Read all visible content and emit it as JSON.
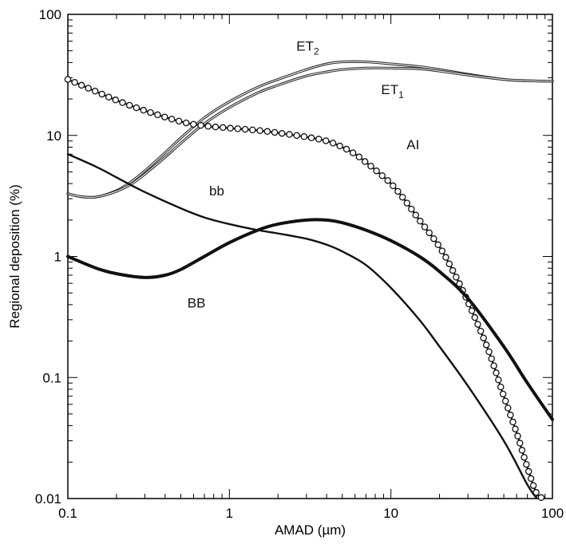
{
  "chart_data": {
    "type": "line",
    "title": "",
    "xlabel": "AMAD (µm)",
    "ylabel": "Regional deposition (%)",
    "x_scale": "log",
    "y_scale": "log",
    "xlim": [
      0.1,
      100
    ],
    "ylim": [
      0.01,
      100
    ],
    "x_ticks": [
      0.1,
      1,
      10,
      100
    ],
    "x_tick_labels": [
      "0.1",
      "1",
      "10",
      "100"
    ],
    "y_ticks": [
      0.01,
      0.1,
      1,
      10,
      100
    ],
    "y_tick_labels": [
      "0.01",
      "0.1",
      "1",
      "10",
      "100"
    ],
    "grid": false,
    "legend": "none",
    "series": [
      {
        "name": "ET2",
        "label_main": "ET",
        "label_sub": "2",
        "style": "thin-double",
        "color": "#2a2a2a",
        "x": [
          0.1,
          0.12,
          0.15,
          0.2,
          0.25,
          0.3,
          0.4,
          0.5,
          0.7,
          1,
          1.5,
          2,
          3,
          4,
          5,
          7,
          10,
          15,
          20,
          30,
          50,
          70,
          100
        ],
        "y": [
          3.3,
          3.12,
          3.1,
          3.5,
          4.2,
          5.1,
          7.2,
          9.5,
          14,
          19,
          25,
          29,
          35,
          39,
          40.5,
          40.5,
          39,
          37,
          35,
          32,
          29,
          28.3,
          28
        ]
      },
      {
        "name": "ET1",
        "label_main": "ET",
        "label_sub": "1",
        "style": "thin-double",
        "color": "#2a2a2a",
        "x": [
          0.1,
          0.12,
          0.15,
          0.2,
          0.25,
          0.3,
          0.4,
          0.5,
          0.7,
          1,
          1.5,
          2,
          3,
          4,
          5,
          7,
          10,
          15,
          20,
          30,
          50,
          70,
          100
        ],
        "y": [
          3.3,
          3.12,
          3.1,
          3.45,
          4.0,
          4.8,
          6.6,
          8.6,
          12.5,
          17,
          22.5,
          26,
          31,
          33.5,
          35,
          36,
          36,
          35.5,
          34,
          31.5,
          29,
          28.3,
          28
        ]
      },
      {
        "name": "AI",
        "label_main": "AI",
        "label_sub": "",
        "style": "line-circles",
        "color": "#111111",
        "x": [
          0.1,
          0.15,
          0.2,
          0.3,
          0.5,
          0.7,
          1,
          1.5,
          2,
          3,
          4,
          5,
          6,
          7,
          8,
          10,
          12,
          15,
          20,
          25,
          30,
          40,
          50,
          60,
          70,
          80,
          90
        ],
        "y": [
          29,
          23,
          19.5,
          16,
          13,
          12,
          11.5,
          11,
          10.5,
          9.7,
          9,
          8,
          7,
          6,
          5.2,
          4,
          3,
          2,
          1.2,
          0.7,
          0.42,
          0.17,
          0.07,
          0.035,
          0.018,
          0.011,
          0.01
        ]
      },
      {
        "name": "bb",
        "label_main": "bb",
        "label_sub": "",
        "style": "medium",
        "color": "#111111",
        "x": [
          0.1,
          0.15,
          0.2,
          0.3,
          0.5,
          0.7,
          1,
          1.5,
          2,
          3,
          4,
          5,
          7,
          10,
          15,
          20,
          30,
          50,
          70,
          80
        ],
        "y": [
          7,
          5.5,
          4.5,
          3.4,
          2.5,
          2.1,
          1.85,
          1.65,
          1.55,
          1.4,
          1.25,
          1.1,
          0.85,
          0.55,
          0.3,
          0.18,
          0.085,
          0.03,
          0.013,
          0.01
        ]
      },
      {
        "name": "BB",
        "label_main": "BB",
        "label_sub": "",
        "style": "thick",
        "color": "#111111",
        "x": [
          0.1,
          0.15,
          0.2,
          0.3,
          0.4,
          0.5,
          0.7,
          1,
          1.5,
          2,
          3,
          4,
          5,
          7,
          10,
          15,
          20,
          30,
          50,
          70,
          100
        ],
        "y": [
          1.0,
          0.8,
          0.72,
          0.67,
          0.7,
          0.78,
          1.0,
          1.3,
          1.65,
          1.85,
          2.0,
          2.0,
          1.9,
          1.65,
          1.35,
          1.0,
          0.75,
          0.45,
          0.18,
          0.09,
          0.045
        ]
      }
    ],
    "annotations": [
      {
        "text": "ET",
        "sub": "2",
        "x": 2.6,
        "y": 50
      },
      {
        "text": "ET",
        "sub": "1",
        "x": 8.7,
        "y": 22
      },
      {
        "text": "AI",
        "x": 12.5,
        "y": 7.7
      },
      {
        "text": "bb",
        "x": 0.75,
        "y": 3.2
      },
      {
        "text": "BB",
        "x": 0.55,
        "y": 0.38
      }
    ]
  }
}
